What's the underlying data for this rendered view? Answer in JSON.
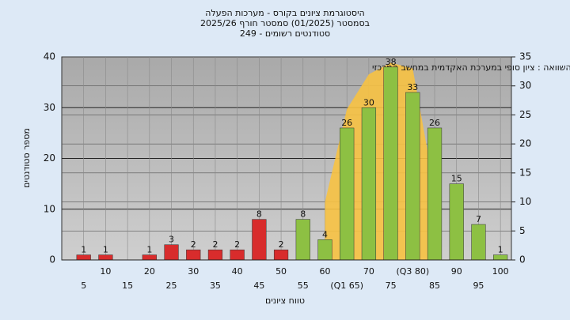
{
  "chart_data": {
    "type": "bar",
    "title": [
      "היסטוגרמת ציונים בקורס - מערכות הפעלה",
      "בסמסטר (01/2025) סמסטר חורף 2025/26",
      "סטודנטים רשומים - 249"
    ],
    "annotation": "בהשוואה : ציון סופי במערכת האקדמית במחשב המרכזי",
    "x_label": "טווח ציונים",
    "y_label": "מספר סטודנטים",
    "categories": [
      "5",
      "10",
      "15",
      "20",
      "25",
      "30",
      "35",
      "40",
      "45",
      "50",
      "55",
      "60",
      "(Q1 65)",
      "70",
      "75",
      "(Q3 80)",
      "85",
      "90",
      "95",
      "100"
    ],
    "values": [
      1,
      1,
      0,
      1,
      3,
      2,
      2,
      2,
      8,
      2,
      8,
      4,
      26,
      30,
      38,
      33,
      26,
      15,
      7,
      1
    ],
    "colors": [
      "#d82c2c",
      "#d82c2c",
      "#d82c2c",
      "#d82c2c",
      "#d82c2c",
      "#d82c2c",
      "#d82c2c",
      "#d82c2c",
      "#d82c2c",
      "#d82c2c",
      "#8dc043",
      "#8dc043",
      "#8dc043",
      "#8dc043",
      "#8dc043",
      "#8dc043",
      "#8dc043",
      "#8dc043",
      "#8dc043",
      "#8dc043"
    ],
    "area": {
      "color": "#f7c242",
      "axis": "y2",
      "values": [
        null,
        null,
        null,
        null,
        null,
        null,
        null,
        null,
        null,
        null,
        null,
        10,
        26,
        32,
        34,
        33,
        12,
        null,
        null,
        null
      ]
    },
    "ylim": [
      0,
      40
    ],
    "yticks": [
      0,
      10,
      20,
      30,
      40
    ],
    "y2lim": [
      0,
      35
    ],
    "y2ticks": [
      0,
      5,
      10,
      15,
      20,
      25,
      30,
      35
    ],
    "grid": true
  }
}
